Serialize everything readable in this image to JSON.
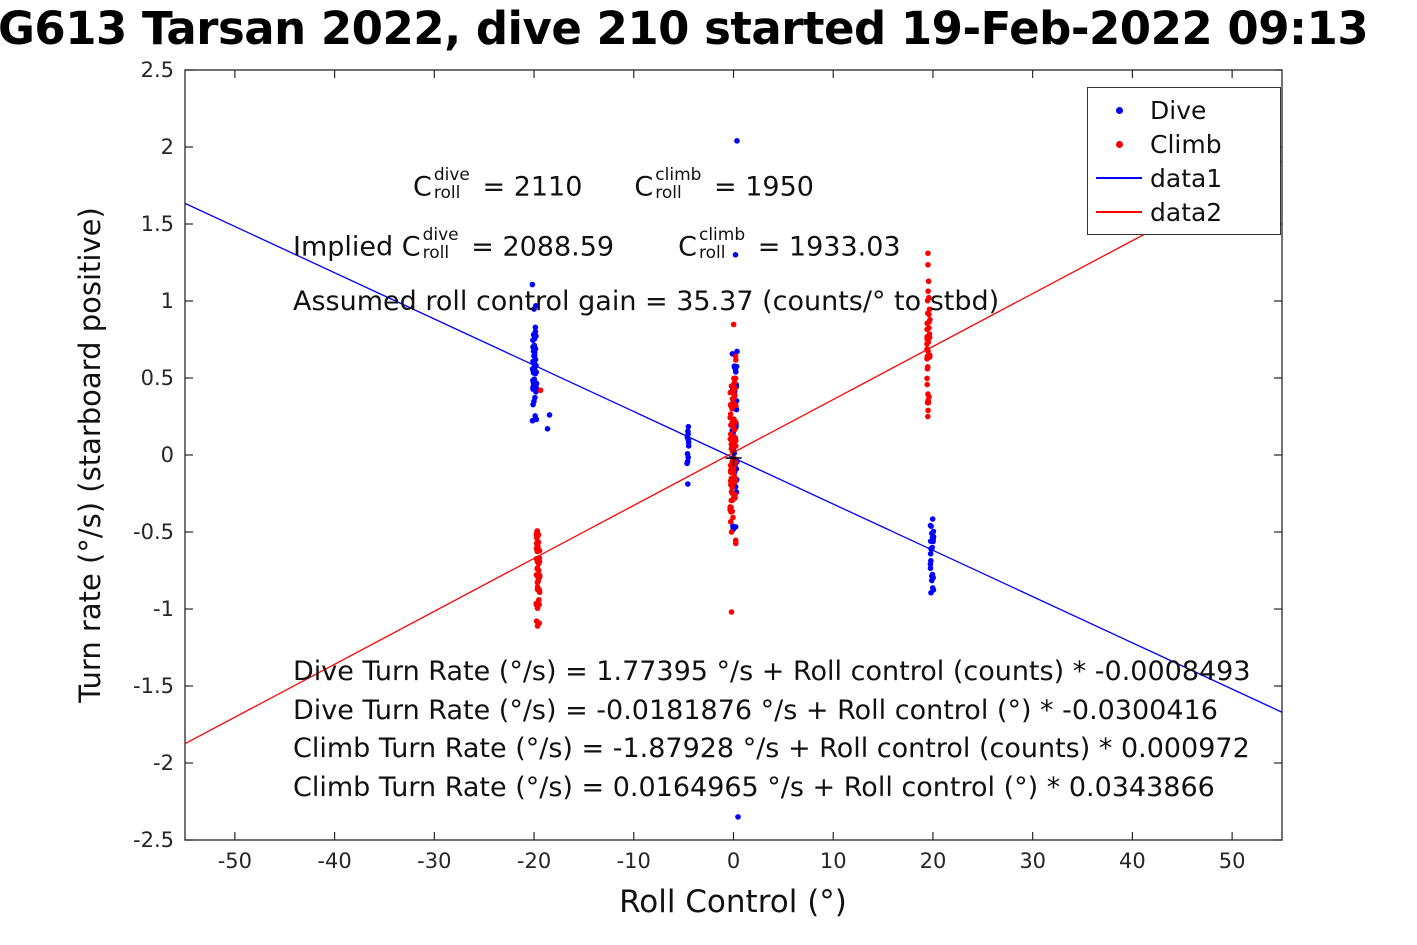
{
  "title": "G613 Tarsan 2022, dive 210 started 19-Feb-2022 09:13",
  "chart_data": {
    "type": "scatter",
    "title": "G613 Tarsan 2022, dive 210 started 19-Feb-2022 09:13",
    "xlabel": "Roll Control (°)",
    "ylabel": "Turn rate (°/s) (starboard positive)",
    "xlim": [
      -55,
      55
    ],
    "ylim": [
      -2.5,
      2.5
    ],
    "xticks": [
      -50,
      -40,
      -30,
      -20,
      -10,
      0,
      10,
      20,
      30,
      40,
      50
    ],
    "yticks": [
      -2.5,
      -2,
      -1.5,
      -1,
      -0.5,
      0,
      0.5,
      1,
      1.5,
      2,
      2.5
    ],
    "grid": false,
    "legend_position": "top-right",
    "colors": {
      "Dive": "#0000ff",
      "Climb": "#ff0000",
      "axis": "#262626",
      "origin_marker": "#000000"
    },
    "clusters": [
      {
        "series": "Dive",
        "seed": 101,
        "x": -19.95,
        "x_spread": 0.22,
        "dist": "normal",
        "y_center": 0.58,
        "y_spread": 0.21,
        "y_min": 0.16,
        "y_max": 1.12,
        "count": 52
      },
      {
        "series": "Dive",
        "seed": 102,
        "x": -4.58,
        "x_spread": 0.1,
        "dist": "uniform",
        "y_center": 0.0,
        "y_spread": 0.0,
        "y_min": -0.26,
        "y_max": 0.19,
        "count": 14
      },
      {
        "series": "Dive",
        "seed": 103,
        "x": 0.12,
        "x_spread": 0.25,
        "dist": "normal",
        "y_center": 0.18,
        "y_spread": 0.34,
        "y_min": -0.62,
        "y_max": 0.78,
        "count": 58
      },
      {
        "series": "Dive",
        "seed": 104,
        "x": 19.9,
        "x_spread": 0.16,
        "dist": "normal",
        "y_center": -0.63,
        "y_spread": 0.16,
        "y_min": -0.92,
        "y_max": -0.39,
        "count": 26
      },
      {
        "series": "Climb",
        "seed": 105,
        "x": -19.6,
        "x_spread": 0.18,
        "dist": "normal",
        "y_center": -0.72,
        "y_spread": 0.2,
        "y_min": -1.27,
        "y_max": -0.44,
        "count": 55
      },
      {
        "series": "Climb",
        "seed": 106,
        "x": -0.05,
        "x_spread": 0.3,
        "dist": "normal",
        "y_center": 0.05,
        "y_spread": 0.35,
        "y_min": -1.02,
        "y_max": 0.86,
        "count": 95
      },
      {
        "series": "Climb",
        "seed": 107,
        "x": 19.55,
        "x_spread": 0.16,
        "dist": "normal",
        "y_center": 0.62,
        "y_spread": 0.28,
        "y_min": 0.03,
        "y_max": 1.31,
        "count": 40
      }
    ],
    "extra_points": [
      {
        "series": "Dive",
        "points": [
          [
            0.35,
            2.04
          ],
          [
            0.45,
            -2.35
          ],
          [
            -18.65,
            0.17
          ],
          [
            -18.45,
            0.26
          ],
          [
            0.2,
            1.3
          ]
        ]
      },
      {
        "series": "Climb",
        "points": [
          [
            -19.35,
            0.42
          ],
          [
            -0.2,
            -1.02
          ],
          [
            19.5,
            1.31
          ]
        ]
      }
    ],
    "origin_marker": {
      "x": 0,
      "y": -0.02
    },
    "lines": [
      {
        "name": "data1",
        "series": "Dive",
        "color": "#0000ff",
        "slope": -0.0300416,
        "intercept": -0.0181876
      },
      {
        "name": "data2",
        "series": "Climb",
        "color": "#ff0000",
        "slope": 0.0343866,
        "intercept": 0.0164965
      }
    ],
    "legend": {
      "items": [
        {
          "label": "Dive",
          "marker": "dot",
          "series": "Dive"
        },
        {
          "label": "Climb",
          "marker": "dot",
          "series": "Climb"
        },
        {
          "label": "data1",
          "marker": "line",
          "series": "Dive"
        },
        {
          "label": "data2",
          "marker": "line",
          "series": "Climb"
        }
      ]
    }
  },
  "annotations": {
    "croll_line": {
      "c1": {
        "base": "C",
        "sup": "dive",
        "sub": "roll",
        "value": " = 2110"
      },
      "c2": {
        "base": "C",
        "sup": "climb",
        "sub": "roll",
        "value": " = 1950"
      }
    },
    "implied_line": {
      "prefix": "Implied ",
      "c1": {
        "base": "C",
        "sup": "dive",
        "sub": "roll",
        "value": " = 2088.59"
      },
      "c2": {
        "base": "C",
        "sup": "climb",
        "sub": "roll",
        "value": " = 1933.03"
      }
    },
    "gain_line": "Assumed roll control gain = 35.37 (counts/° to stbd)",
    "equations": [
      "Dive Turn Rate (°/s) = 1.77395 °/s + Roll control (counts) * -0.0008493",
      "Dive Turn Rate (°/s) = -0.0181876 °/s + Roll control (°) * -0.0300416",
      "Climb Turn Rate (°/s) = -1.87928 °/s + Roll control (counts) * 0.000972",
      "Climb Turn Rate (°/s) = 0.0164965 °/s + Roll control (°) * 0.0343866"
    ]
  }
}
